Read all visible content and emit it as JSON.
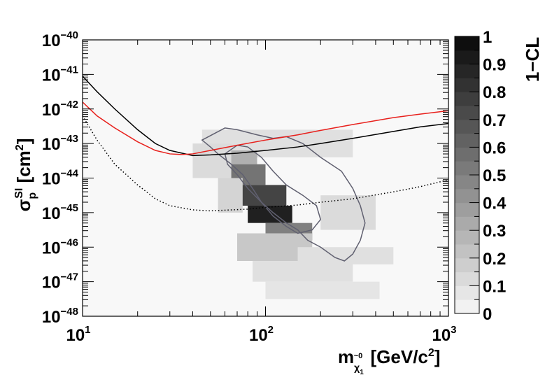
{
  "chart_data": {
    "type": "heatmap",
    "x_scale": "log",
    "y_scale": "log",
    "xlim": [
      10,
      1000
    ],
    "ylim": [
      1e-48,
      1e-40
    ],
    "x_ticks": [
      {
        "base": "10",
        "exp": "1"
      },
      {
        "base": "10",
        "exp": "2"
      },
      {
        "base": "10",
        "exp": "3"
      }
    ],
    "y_ticks": [
      {
        "base": "10",
        "exp": "−48"
      },
      {
        "base": "10",
        "exp": "−47"
      },
      {
        "base": "10",
        "exp": "−46"
      },
      {
        "base": "10",
        "exp": "−45"
      },
      {
        "base": "10",
        "exp": "−44"
      },
      {
        "base": "10",
        "exp": "−43"
      },
      {
        "base": "10",
        "exp": "−42"
      },
      {
        "base": "10",
        "exp": "−41"
      },
      {
        "base": "10",
        "exp": "−40"
      }
    ],
    "xlabel": {
      "main": "m",
      "sub1": "~0",
      "sub2": "χ",
      "sub3": "1",
      "unit": " [GeV/c",
      "unit_sup": "2",
      "unit_end": "]"
    },
    "ylabel": {
      "sigma": "σ",
      "sub": "p",
      "sup": "SI",
      "unit": " [cm",
      "unit_sup": "2",
      "unit_end": "]"
    },
    "colorbar": {
      "title": "1−CL",
      "range": [
        0,
        1
      ],
      "ticks": [
        "0",
        "0.1",
        "0.2",
        "0.3",
        "0.4",
        "0.5",
        "0.6",
        "0.7",
        "0.8",
        "0.9",
        "1"
      ]
    },
    "grid": false,
    "heatmap_bins": [
      [
        45,
        300,
        -43.4,
        -42.6,
        0.1
      ],
      [
        55,
        90,
        -43.6,
        -43.2,
        0.3
      ],
      [
        60,
        100,
        -44.2,
        -43.6,
        0.55
      ],
      [
        70,
        130,
        -44.8,
        -44.2,
        0.75
      ],
      [
        80,
        140,
        -45.3,
        -44.8,
        0.9
      ],
      [
        100,
        180,
        -45.8,
        -45.3,
        0.5
      ],
      [
        40,
        65,
        -44.0,
        -43.0,
        0.12
      ],
      [
        55,
        75,
        -45.0,
        -44.0,
        0.15
      ],
      [
        70,
        180,
        -46.4,
        -45.6,
        0.2
      ],
      [
        85,
        300,
        -47.0,
        -46.4,
        0.1
      ],
      [
        100,
        420,
        -47.5,
        -47.0,
        0.08
      ],
      [
        150,
        500,
        -46.5,
        -46.0,
        0.1
      ],
      [
        200,
        400,
        -45.5,
        -44.5,
        0.12
      ]
    ],
    "contours": [
      {
        "name": "",
        "color": "#606070",
        "x": [
          45,
          60,
          70,
          90,
          110,
          130,
          160,
          200,
          260,
          300,
          330,
          350,
          330,
          300,
          270,
          240,
          200,
          170,
          150,
          130,
          110,
          95,
          85,
          75,
          65,
          55,
          50,
          45
        ],
        "y": [
          -42.9,
          -42.55,
          -42.6,
          -42.75,
          -42.85,
          -42.8,
          -43.0,
          -43.4,
          -43.8,
          -44.3,
          -44.8,
          -45.3,
          -45.8,
          -46.2,
          -46.4,
          -46.3,
          -46.0,
          -45.8,
          -45.5,
          -45.3,
          -45.0,
          -44.7,
          -44.3,
          -43.9,
          -43.6,
          -43.3,
          -43.1,
          -42.9
        ]
      },
      {
        "name": "",
        "color": "#606070",
        "x": [
          60,
          70,
          80,
          95,
          110,
          130,
          160,
          190,
          200,
          180,
          150,
          130,
          110,
          95,
          80,
          70,
          62,
          60
        ],
        "y": [
          -43.3,
          -43.05,
          -43.1,
          -43.4,
          -43.8,
          -44.2,
          -44.5,
          -44.8,
          -45.2,
          -45.5,
          -45.6,
          -45.4,
          -45.1,
          -44.7,
          -44.3,
          -43.9,
          -43.6,
          -43.3
        ]
      }
    ],
    "lines": [
      {
        "name": "",
        "color": "#000000",
        "style": "solid",
        "x": [
          10,
          12,
          15,
          20,
          25,
          30,
          40,
          50,
          70,
          100,
          150,
          200,
          300,
          500,
          700,
          1000
        ],
        "y": [
          -41.05,
          -41.5,
          -42.0,
          -42.6,
          -43.0,
          -43.2,
          -43.35,
          -43.33,
          -43.28,
          -43.2,
          -43.1,
          -43.0,
          -42.85,
          -42.65,
          -42.52,
          -42.42
        ]
      },
      {
        "name": "",
        "color": "#e8201c",
        "style": "solid",
        "x": [
          10,
          12,
          15,
          20,
          25,
          30,
          35,
          40,
          50,
          70,
          100,
          150,
          200,
          300,
          500,
          700,
          1000
        ],
        "y": [
          -41.8,
          -42.2,
          -42.55,
          -42.95,
          -43.2,
          -43.3,
          -43.32,
          -43.3,
          -43.2,
          -43.05,
          -42.9,
          -42.75,
          -42.62,
          -42.45,
          -42.25,
          -42.15,
          -42.05
        ]
      },
      {
        "name": "",
        "color": "#000000",
        "style": "dotted",
        "x": [
          10,
          12,
          15,
          20,
          25,
          30,
          40,
          50,
          60,
          80,
          100,
          150,
          200,
          300,
          500,
          700,
          1000
        ],
        "y": [
          -42.2,
          -42.9,
          -43.6,
          -44.2,
          -44.6,
          -44.8,
          -44.92,
          -44.95,
          -44.93,
          -44.9,
          -44.85,
          -44.78,
          -44.7,
          -44.6,
          -44.4,
          -44.25,
          -44.05
        ]
      }
    ]
  }
}
